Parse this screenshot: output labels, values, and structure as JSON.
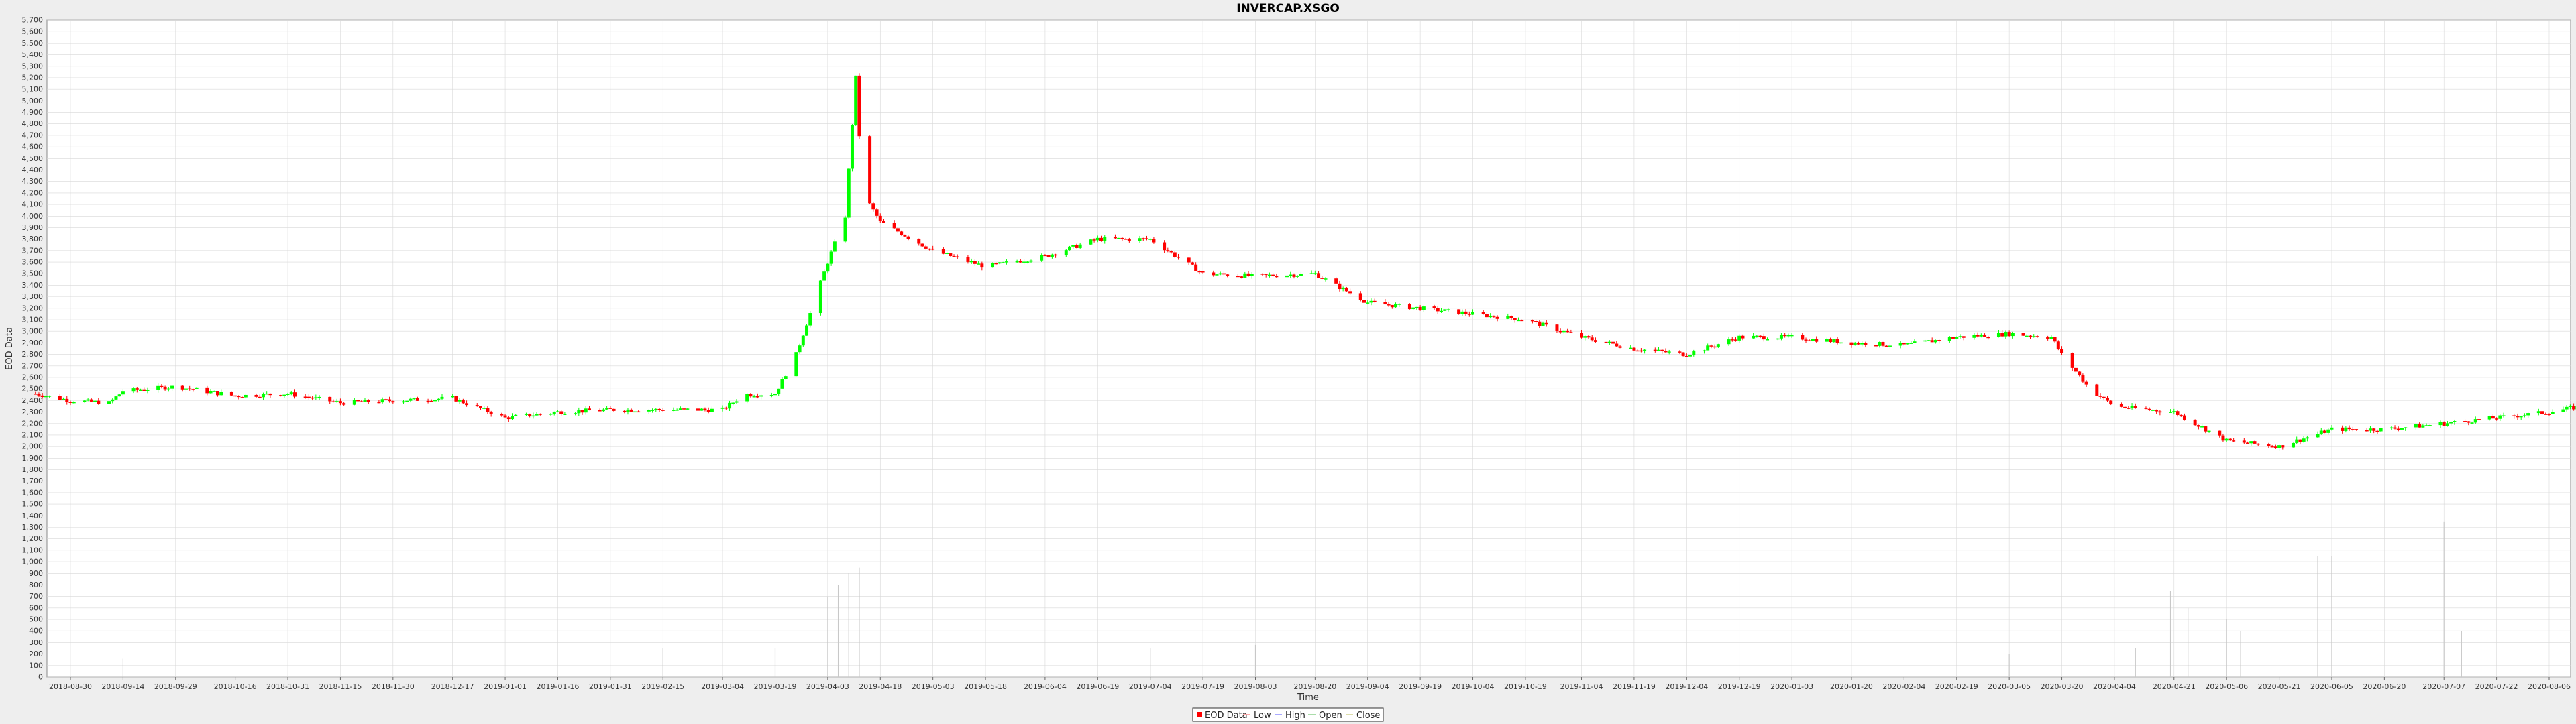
{
  "chart_data": {
    "type": "candlestick",
    "title": "INVERCAP.XSGO",
    "xlabel": "Time",
    "ylabel": "EOD Data",
    "ylim": [
      0,
      5700
    ],
    "ytick_step": 100,
    "grid": true,
    "legend_position": "bottom-center",
    "legend": [
      "EOD Data",
      "Low",
      "High",
      "Open",
      "Close"
    ],
    "x_ticks": [
      "2018-08-30",
      "2018-09-14",
      "2018-09-29",
      "2018-10-16",
      "2018-10-31",
      "2018-11-15",
      "2018-11-30",
      "2018-12-17",
      "2019-01-01",
      "2019-01-16",
      "2019-01-31",
      "2019-02-15",
      "2019-03-04",
      "2019-03-19",
      "2019-04-03",
      "2019-04-18",
      "2019-05-03",
      "2019-05-18",
      "2019-06-04",
      "2019-06-19",
      "2019-07-04",
      "2019-07-19",
      "2019-08-03",
      "2019-08-20",
      "2019-09-04",
      "2019-09-19",
      "2019-10-04",
      "2019-10-19",
      "2019-11-04",
      "2019-11-19",
      "2019-12-04",
      "2019-12-19",
      "2020-01-03",
      "2020-01-20",
      "2020-02-04",
      "2020-02-19",
      "2020-03-05",
      "2020-03-20",
      "2020-04-04",
      "2020-04-21",
      "2020-05-06",
      "2020-05-21",
      "2020-06-05",
      "2020-06-20",
      "2020-07-07",
      "2020-07-22",
      "2020-08-06"
    ],
    "price_anchors": [
      [
        "2018-08-20",
        2460
      ],
      [
        "2018-08-30",
        2400
      ],
      [
        "2018-09-10",
        2380
      ],
      [
        "2018-09-14",
        2480
      ],
      [
        "2018-09-29",
        2520
      ],
      [
        "2018-10-16",
        2440
      ],
      [
        "2018-10-31",
        2460
      ],
      [
        "2018-11-15",
        2380
      ],
      [
        "2018-11-30",
        2400
      ],
      [
        "2018-12-17",
        2420
      ],
      [
        "2019-01-01",
        2250
      ],
      [
        "2019-01-16",
        2300
      ],
      [
        "2019-01-31",
        2320
      ],
      [
        "2019-02-15",
        2320
      ],
      [
        "2019-03-04",
        2320
      ],
      [
        "2019-03-10",
        2450
      ],
      [
        "2019-03-19",
        2460
      ],
      [
        "2019-03-25",
        2800
      ],
      [
        "2019-04-03",
        3600
      ],
      [
        "2019-04-08",
        4000
      ],
      [
        "2019-04-11",
        5200
      ],
      [
        "2019-04-13",
        4200
      ],
      [
        "2019-04-18",
        3950
      ],
      [
        "2019-05-03",
        3700
      ],
      [
        "2019-05-18",
        3560
      ],
      [
        "2019-06-04",
        3650
      ],
      [
        "2019-06-19",
        3800
      ],
      [
        "2019-07-04",
        3800
      ],
      [
        "2019-07-19",
        3500
      ],
      [
        "2019-08-03",
        3480
      ],
      [
        "2019-08-20",
        3500
      ],
      [
        "2019-09-04",
        3250
      ],
      [
        "2019-09-19",
        3200
      ],
      [
        "2019-10-04",
        3150
      ],
      [
        "2019-10-19",
        3100
      ],
      [
        "2019-11-04",
        2950
      ],
      [
        "2019-11-19",
        2850
      ],
      [
        "2019-12-04",
        2800
      ],
      [
        "2019-12-19",
        2950
      ],
      [
        "2020-01-03",
        2950
      ],
      [
        "2020-01-20",
        2900
      ],
      [
        "2020-02-04",
        2880
      ],
      [
        "2020-02-19",
        2950
      ],
      [
        "2020-03-05",
        2980
      ],
      [
        "2020-03-17",
        2950
      ],
      [
        "2020-03-20",
        2800
      ],
      [
        "2020-03-28",
        2500
      ],
      [
        "2020-04-04",
        2350
      ],
      [
        "2020-04-21",
        2300
      ],
      [
        "2020-05-06",
        2050
      ],
      [
        "2020-05-21",
        2000
      ],
      [
        "2020-06-05",
        2150
      ],
      [
        "2020-06-20",
        2150
      ],
      [
        "2020-07-07",
        2200
      ],
      [
        "2020-07-22",
        2250
      ],
      [
        "2020-08-06",
        2300
      ],
      [
        "2020-08-15",
        2350
      ]
    ],
    "volume_spikes": [
      [
        "2018-09-14",
        160
      ],
      [
        "2019-02-15",
        250
      ],
      [
        "2019-03-19",
        250
      ],
      [
        "2019-04-03",
        700
      ],
      [
        "2019-04-06",
        800
      ],
      [
        "2019-04-09",
        900
      ],
      [
        "2019-04-12",
        950
      ],
      [
        "2019-07-04",
        250
      ],
      [
        "2019-08-03",
        280
      ],
      [
        "2020-03-05",
        200
      ],
      [
        "2020-04-10",
        250
      ],
      [
        "2020-04-20",
        750
      ],
      [
        "2020-04-25",
        600
      ],
      [
        "2020-05-06",
        500
      ],
      [
        "2020-05-10",
        400
      ],
      [
        "2020-06-01",
        1050
      ],
      [
        "2020-06-05",
        1050
      ],
      [
        "2020-07-07",
        1350
      ],
      [
        "2020-07-12",
        400
      ]
    ]
  },
  "colors": {
    "up": "#00ff00",
    "down": "#ff0000",
    "grid": "#d8d8d8",
    "plot_bg": "#ffffff",
    "page_bg": "#eeeeee",
    "volume": "#c8c8c8"
  }
}
